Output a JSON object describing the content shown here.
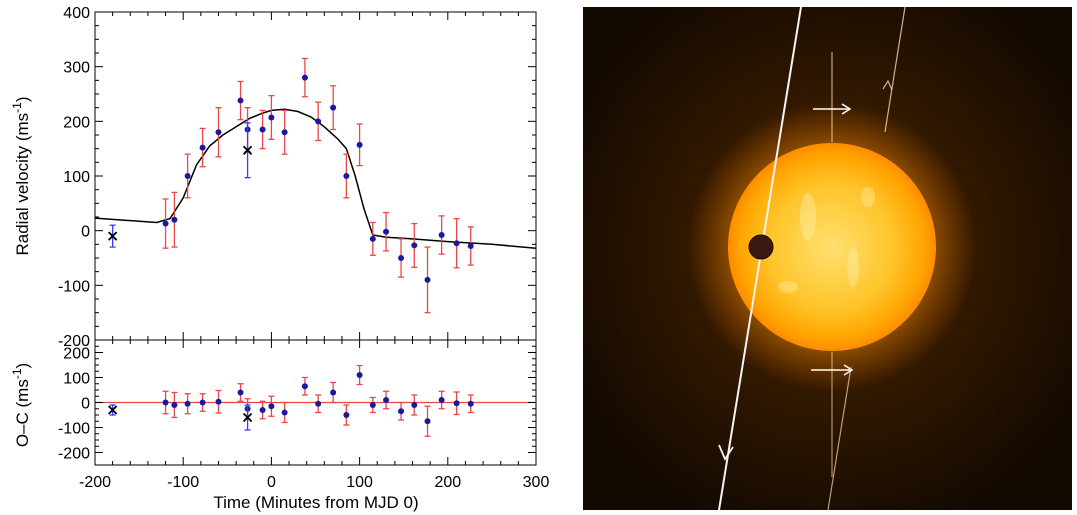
{
  "chart_data": [
    {
      "type": "scatter",
      "panel": "radial-velocity",
      "xlabel": "Time (Minutes from MJD 0)",
      "ylabel": "Radial velocity (ms",
      "ylabel_sup": "-1",
      "ylabel_close": ")",
      "xlim": [
        -200,
        300
      ],
      "ylim": [
        -200,
        400
      ],
      "xticks": [
        "-200",
        "-100",
        "0",
        "100",
        "200",
        "300"
      ],
      "yticks": [
        "-200",
        "-100",
        "0",
        "100",
        "200",
        "300",
        "400"
      ],
      "grid": false,
      "series": [
        {
          "marker": "dot",
          "color": "#1a1aa0",
          "errorbar_color": "#e84848",
          "x": [
            -120,
            -110,
            -95,
            -78,
            -60,
            -35,
            -27,
            -10,
            0,
            15,
            38,
            53,
            70,
            85,
            100,
            115,
            130,
            147,
            162,
            177,
            193,
            210,
            226
          ],
          "y": [
            13,
            20,
            100,
            152,
            180,
            238,
            185,
            185,
            207,
            180,
            280,
            200,
            225,
            100,
            157,
            -15,
            -2,
            -50,
            -27,
            -90,
            -8,
            -23,
            -28
          ],
          "yerr": [
            45,
            50,
            40,
            35,
            45,
            35,
            40,
            35,
            40,
            40,
            35,
            35,
            40,
            40,
            38,
            30,
            35,
            35,
            40,
            60,
            35,
            45,
            35
          ]
        },
        {
          "marker": "cross",
          "color": "#000000",
          "errorbar_color": "#3a3aff",
          "x": [
            -180,
            -27
          ],
          "y": [
            -10,
            147
          ],
          "yerr": [
            20,
            50
          ]
        },
        {
          "marker": "line",
          "color": "#000000",
          "name": "",
          "x": [
            -200,
            -130,
            -115,
            -100,
            -85,
            -70,
            -55,
            -40,
            -25,
            -10,
            0,
            15,
            30,
            45,
            60,
            75,
            85,
            95,
            105,
            115,
            130,
            160,
            200,
            250,
            300
          ],
          "y": [
            23,
            15,
            22,
            60,
            120,
            155,
            175,
            190,
            205,
            215,
            220,
            222,
            218,
            208,
            190,
            168,
            150,
            100,
            40,
            -8,
            -12,
            -15,
            -20,
            -25,
            -32
          ]
        }
      ]
    },
    {
      "type": "scatter",
      "panel": "residuals",
      "ylabel": "O–C (ms",
      "ylabel_sup": "-1",
      "ylabel_close": ")",
      "xlim": [
        -200,
        300
      ],
      "ylim": [
        -250,
        250
      ],
      "yticks": [
        "-200",
        "-100",
        "0",
        "100",
        "200"
      ],
      "reference_line": {
        "y": 0,
        "color": "#e84848"
      },
      "series": [
        {
          "marker": "dot",
          "color": "#1a1aa0",
          "errorbar_color": "#e84848",
          "x": [
            -120,
            -110,
            -95,
            -78,
            -60,
            -35,
            -27,
            -10,
            0,
            15,
            38,
            53,
            70,
            85,
            100,
            115,
            130,
            147,
            162,
            177,
            193,
            210,
            226
          ],
          "y": [
            0,
            -10,
            -5,
            0,
            3,
            40,
            -25,
            -30,
            -15,
            -40,
            65,
            -5,
            40,
            -50,
            110,
            -10,
            10,
            -35,
            -10,
            -75,
            10,
            -3,
            -5
          ],
          "yerr": [
            45,
            50,
            40,
            35,
            45,
            35,
            40,
            35,
            40,
            40,
            35,
            35,
            40,
            40,
            38,
            30,
            35,
            35,
            40,
            60,
            35,
            45,
            35
          ]
        },
        {
          "marker": "cross",
          "color": "#000000",
          "errorbar_color": "#3a3aff",
          "x": [
            -180,
            -27
          ],
          "y": [
            -30,
            -60
          ],
          "yerr": [
            20,
            50
          ]
        }
      ]
    }
  ],
  "illustration": {
    "background": "#1a0e00",
    "star_core": "#ffcf3a",
    "star_edge": "#ff9a00",
    "glow": "#7a3d00",
    "planet": "#3a1a10",
    "orbit_line": "#f0f0f0"
  }
}
